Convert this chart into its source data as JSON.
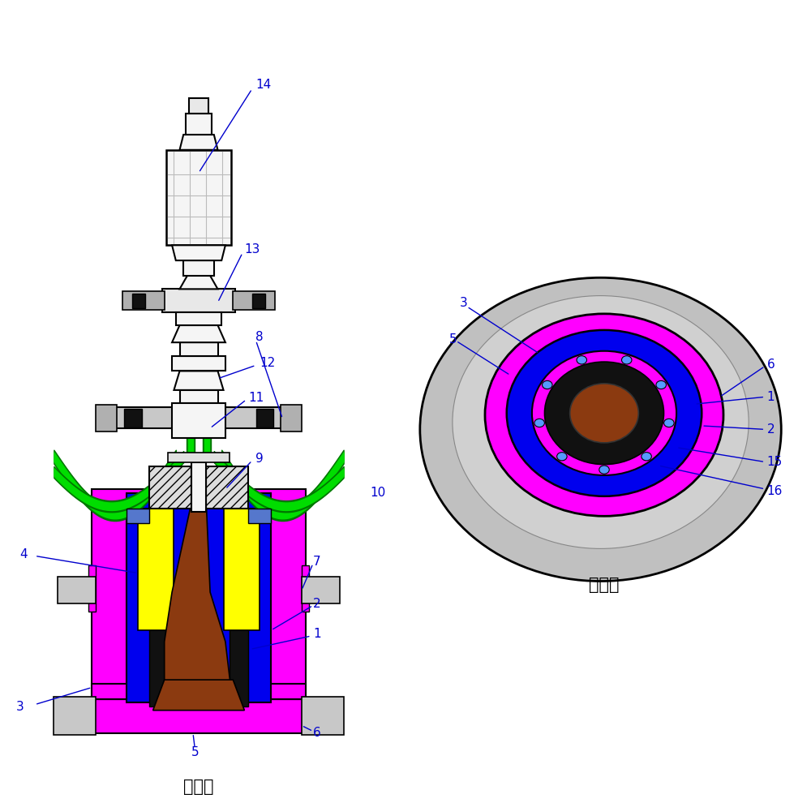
{
  "background_color": "#ffffff",
  "label_color": "#0000cd",
  "label_fontsize": 11,
  "chinese_label_fontsize": 15,
  "left_view_title": "剖视图",
  "right_view_title": "仰视图",
  "colors": {
    "white": "#ffffff",
    "light_gray": "#c8c8c8",
    "gray": "#a0a0a0",
    "magenta": "#ff00ff",
    "blue": "#0000ee",
    "mid_blue": "#3366ff",
    "cyan_blue": "#5599ff",
    "green": "#00dd00",
    "dark_green": "#007700",
    "yellow": "#ffff00",
    "brown": "#8b3a10",
    "black": "#000000",
    "near_black": "#111111",
    "off_white": "#f5f5f5",
    "pale_gray": "#e8e8e8",
    "mid_gray": "#b0b0b0"
  }
}
